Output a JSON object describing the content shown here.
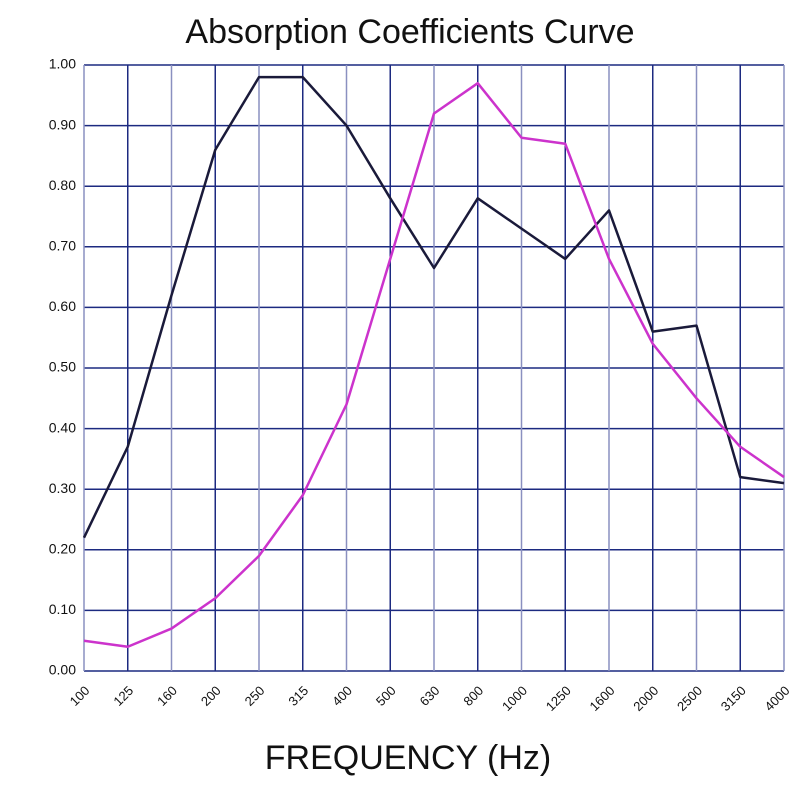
{
  "chart_data": {
    "type": "line",
    "title": "Absorption Coefficients Curve",
    "x_label": "FREQUENCY (Hz)",
    "categories": [
      "100",
      "125",
      "160",
      "200",
      "250",
      "315",
      "400",
      "500",
      "630",
      "800",
      "1000",
      "1250",
      "1600",
      "2000",
      "2500",
      "3150",
      "4000"
    ],
    "series": [
      {
        "color": "#1a1a3a",
        "values": [
          0.22,
          0.37,
          0.62,
          0.86,
          0.98,
          0.98,
          0.9,
          0.78,
          0.665,
          0.78,
          0.73,
          0.68,
          0.76,
          0.56,
          0.57,
          0.32,
          0.31
        ]
      },
      {
        "color": "#cc33cc",
        "values": [
          0.05,
          0.04,
          0.07,
          0.12,
          0.19,
          0.29,
          0.44,
          0.68,
          0.92,
          0.97,
          0.88,
          0.87,
          0.68,
          0.54,
          0.45,
          0.37,
          0.32
        ]
      }
    ],
    "ylim": [
      0,
      1
    ],
    "yticks": [
      {
        "value": 0,
        "label": "0.00"
      },
      {
        "value": 0.1,
        "label": "0.10"
      },
      {
        "value": 0.2,
        "label": "0.20"
      },
      {
        "value": 0.3,
        "label": "0.30"
      },
      {
        "value": 0.4,
        "label": "0.40"
      },
      {
        "value": 0.5,
        "label": "0.50"
      },
      {
        "value": 0.6,
        "label": "0.60"
      },
      {
        "value": 0.7,
        "label": "0.70"
      },
      {
        "value": 0.8,
        "label": "0.80"
      },
      {
        "value": 0.9,
        "label": "0.90"
      },
      {
        "value": 1,
        "label": "1.00"
      }
    ],
    "grid": true,
    "grid_color": "#1c2a80"
  }
}
